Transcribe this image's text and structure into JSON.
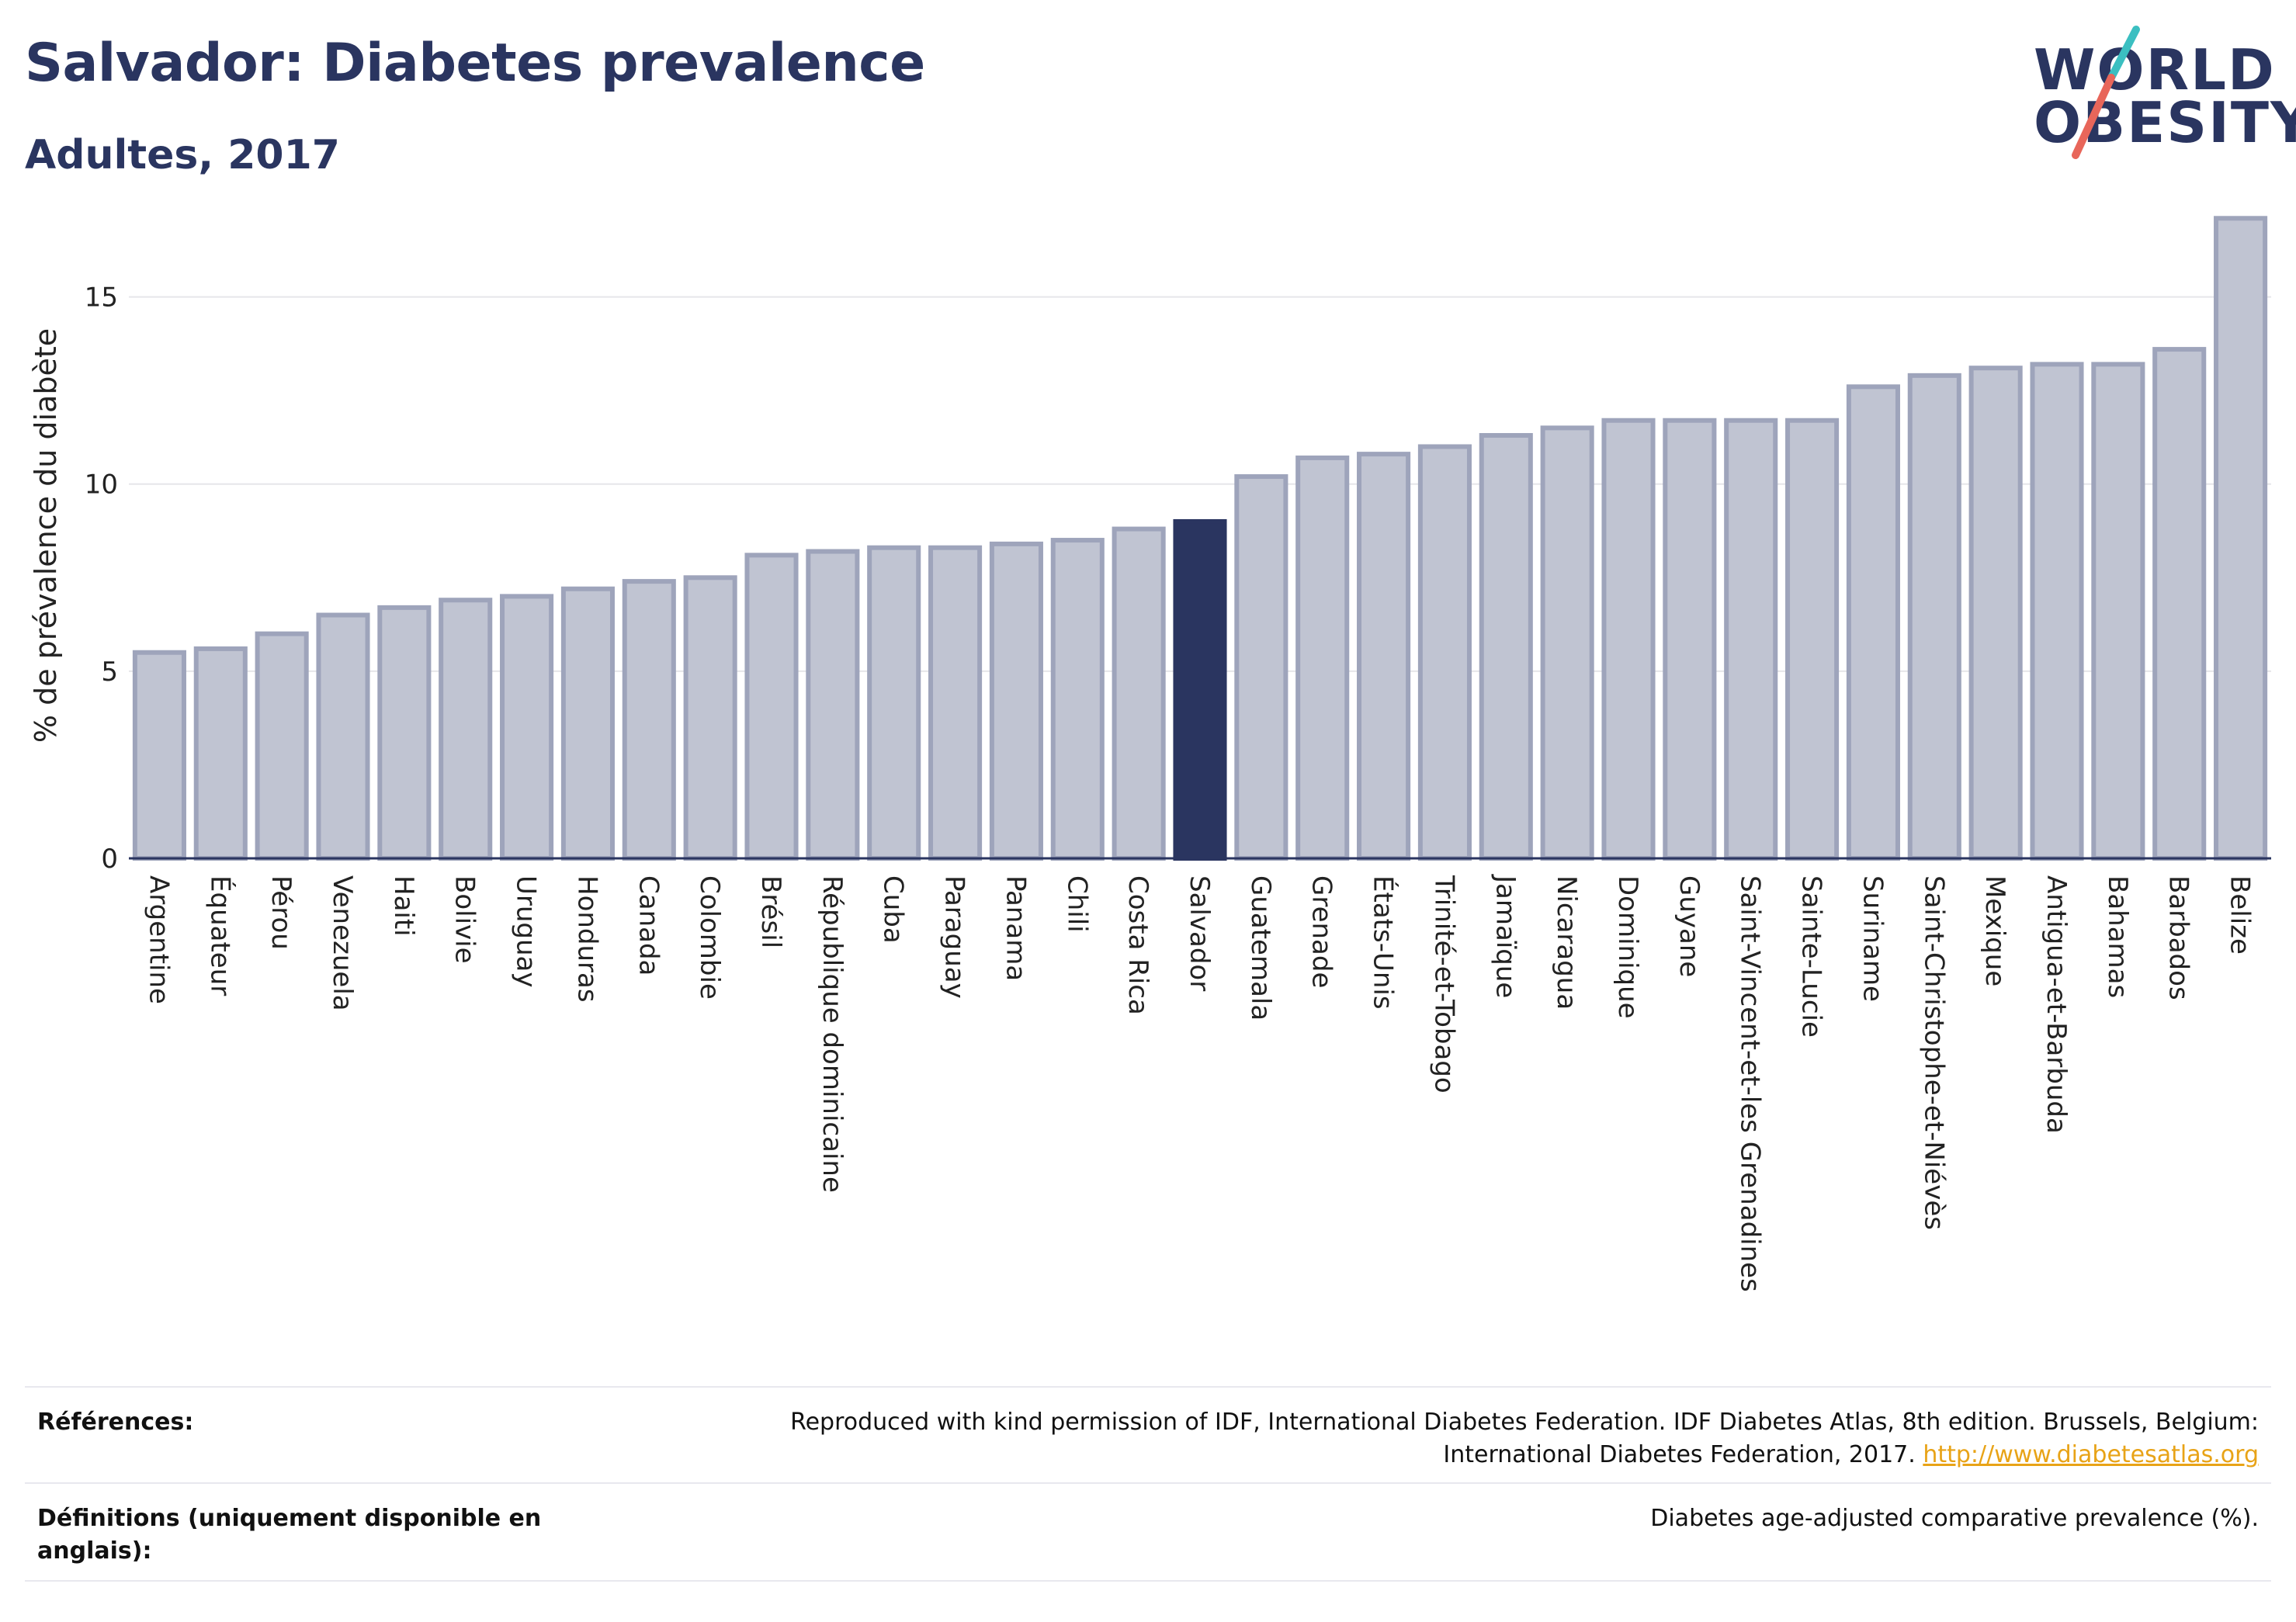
{
  "header": {
    "title": "Salvador: Diabetes prevalence",
    "subtitle": "Adultes, 2017",
    "logo_text_line1": "WORLD",
    "logo_text_line2": "OBESITY"
  },
  "colors": {
    "bar": "#c0c4d2",
    "bar_border": "#9ea4bb",
    "highlight": "#2a3560",
    "title": "#2a3560",
    "logo_slash_red": "#e8665a",
    "logo_slash_teal": "#3bbfc1",
    "link": "#e8a317"
  },
  "chart_data": {
    "type": "bar",
    "ylabel": "% de prévalence du diabète",
    "ylim": [
      0,
      17.5
    ],
    "yticks": [
      0,
      5,
      10,
      15
    ],
    "grid": true,
    "highlight": "Salvador",
    "categories": [
      "Argentine",
      "Équateur",
      "Pérou",
      "Venezuela",
      "Haiti",
      "Bolivie",
      "Uruguay",
      "Honduras",
      "Canada",
      "Colombie",
      "Brésil",
      "République dominicaine",
      "Cuba",
      "Paraguay",
      "Panama",
      "Chili",
      "Costa Rica",
      "Salvador",
      "Guatemala",
      "Grenade",
      "États-Unis",
      "Trinité-et-Tobago",
      "Jamaïque",
      "Nicaragua",
      "Dominique",
      "Guyane",
      "Saint-Vincent-et-les Grenadines",
      "Sainte-Lucie",
      "Suriname",
      "Saint-Christophe-et-Niévès",
      "Mexique",
      "Antigua-et-Barbuda",
      "Bahamas",
      "Barbados",
      "Belize"
    ],
    "values": [
      5.5,
      5.6,
      6.0,
      6.5,
      6.7,
      6.9,
      7.0,
      7.2,
      7.4,
      7.5,
      8.1,
      8.2,
      8.3,
      8.3,
      8.4,
      8.5,
      8.8,
      9.0,
      10.2,
      10.7,
      10.8,
      11.0,
      11.3,
      11.5,
      11.7,
      11.7,
      11.7,
      11.7,
      12.6,
      12.9,
      13.1,
      13.2,
      13.2,
      13.6,
      17.1
    ]
  },
  "references": {
    "label": "Références:",
    "text": "Reproduced with kind permission of IDF, International Diabetes Federation. IDF Diabetes Atlas, 8th edition. Brussels, Belgium:",
    "text2": "International Diabetes Federation, 2017.",
    "link": "http://www.diabetesatlas.org"
  },
  "definitions": {
    "label_line1": "Définitions (uniquement disponible en",
    "label_line2": "anglais):",
    "text": "Diabetes age-adjusted comparative prevalence (%)."
  }
}
